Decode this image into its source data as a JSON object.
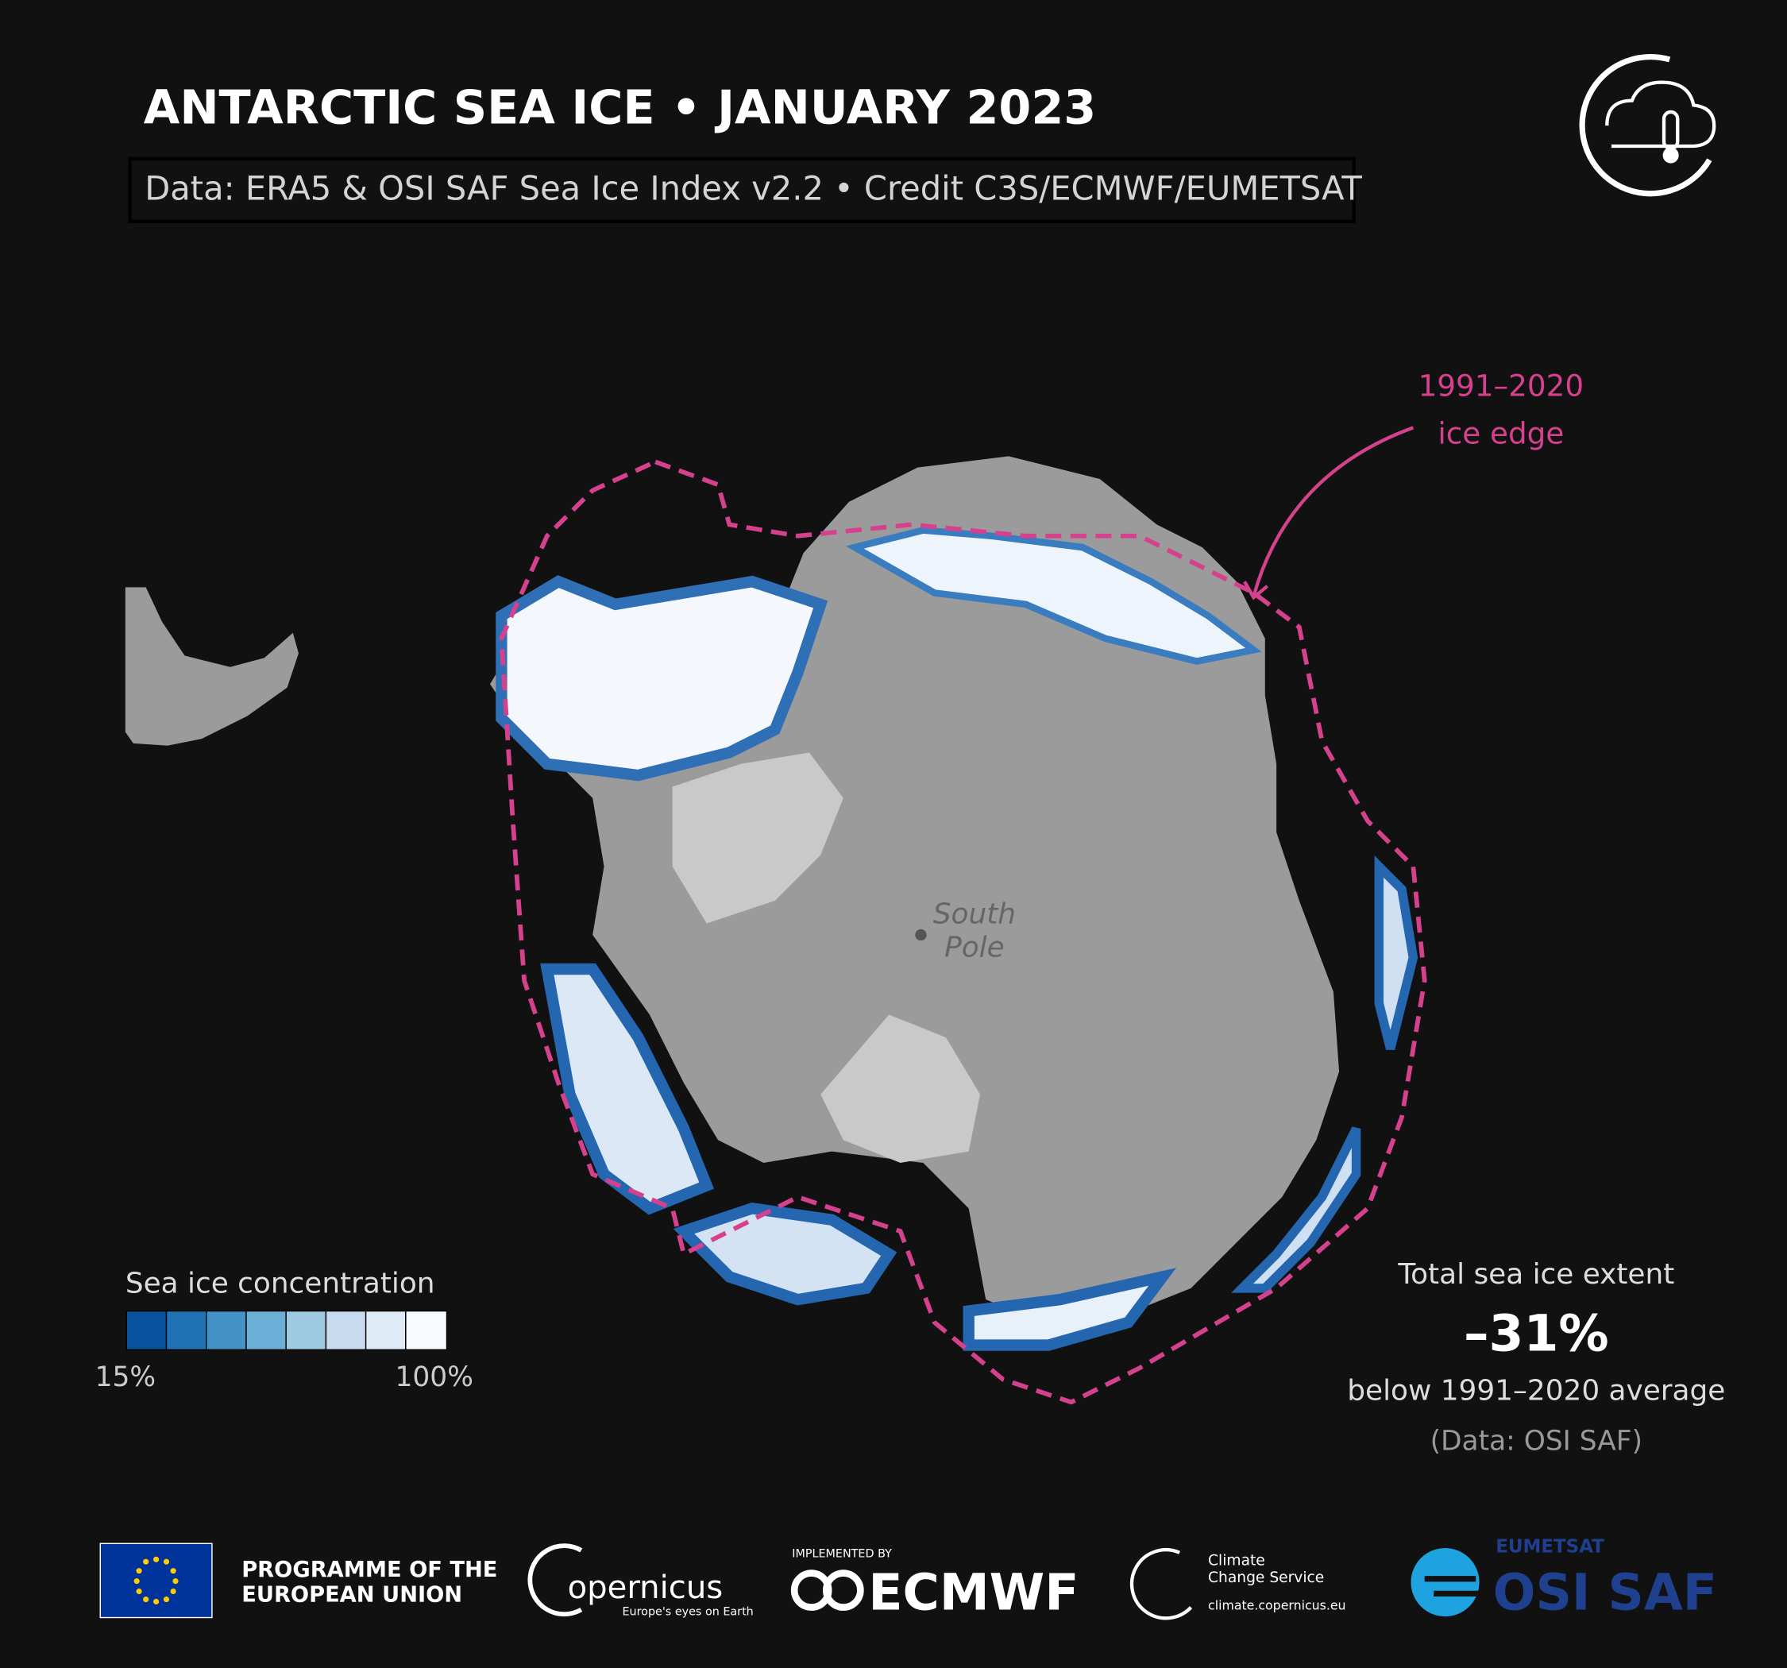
{
  "header": {
    "title": "ANTARCTIC SEA ICE • JANUARY 2023",
    "subtitle": "Data: ERA5 & OSI SAF Sea Ice Index v2.2 • Credit C3S/ECMWF/EUMETSAT"
  },
  "map": {
    "annotation": [
      "1991–2020",
      "ice edge"
    ],
    "pole_label": [
      "South",
      "Pole"
    ]
  },
  "legend": {
    "title": "Sea ice concentration",
    "low": "15%",
    "high": "100%"
  },
  "stats": {
    "label": "Total sea ice extent",
    "value": "–31%",
    "caption": "below 1991–2020 average",
    "source": "(Data: OSI SAF)"
  },
  "footer": {
    "eu": [
      "PROGRAMME OF THE",
      "EUROPEAN UNION"
    ],
    "copernicus": [
      "opernicus",
      "Europe's eyes on Earth"
    ],
    "ecmwf": [
      "IMPLEMENTED BY",
      "ECMWF"
    ],
    "c3s": [
      "Climate",
      "Change Service",
      "climate.copernicus.eu"
    ],
    "osisaf": [
      "EUMETSAT",
      "OSI SAF"
    ]
  }
}
